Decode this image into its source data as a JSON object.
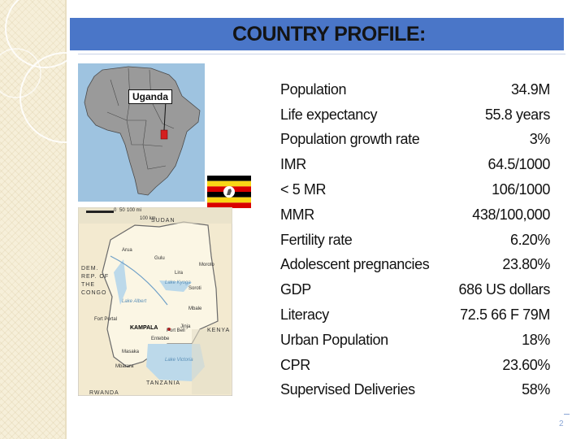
{
  "slide": {
    "title": "COUNTRY PROFILE:",
    "page_number": "2"
  },
  "map": {
    "callout": "Uganda",
    "labels": {
      "sudan": "SUDAN",
      "drc": "DEM. REP. OF THE CONGO",
      "kenya": "KENYA",
      "tanzania": "TANZANIA",
      "rwanda": "RWANDA",
      "kampala": "KAMPALA",
      "arua": "Arua",
      "gulu": "Gulu",
      "lira": "Lira",
      "moroto": "Moroto",
      "soroti": "Soroti",
      "mbale": "Mbale",
      "jinja": "Jinja",
      "port_bell": "Port Bell",
      "entebbe": "Entebbe",
      "fort_portal": "Fort Portal",
      "masaka": "Masaka",
      "mbarara": "Mbarara",
      "lake_victoria": "Lake Victoria",
      "lake_albert": "Lake Albert",
      "lake_kyoga": "Lake Kyoga",
      "scale_0": "0",
      "scale_50": "50",
      "scale_100": "100 mi",
      "scale_100km": "100 km"
    }
  },
  "flag": {
    "colors": [
      "#000000",
      "#f9d616",
      "#d90000"
    ]
  },
  "stats": [
    {
      "label": "Population",
      "value": "34.9M"
    },
    {
      "label": "Life expectancy",
      "value": "55.8 years"
    },
    {
      "label": "Population growth rate",
      "value": "3%"
    },
    {
      "label": "IMR",
      "value": "64.5/1000"
    },
    {
      "label": "< 5 MR",
      "value": "106/1000"
    },
    {
      "label": "MMR",
      "value": "438/100,000"
    },
    {
      "label": "Fertility rate",
      "value": "6.20%"
    },
    {
      "label": "Adolescent pregnancies",
      "value": "23.80%"
    },
    {
      "label": "GDP",
      "value": "686 US dollars"
    },
    {
      "label": "Literacy",
      "value": "72.5 66 F  79M"
    },
    {
      "label": "Urban Population",
      "value": "18%"
    },
    {
      "label": "CPR",
      "value": "23.60%"
    },
    {
      "label": "Supervised Deliveries",
      "value": "58%"
    }
  ]
}
